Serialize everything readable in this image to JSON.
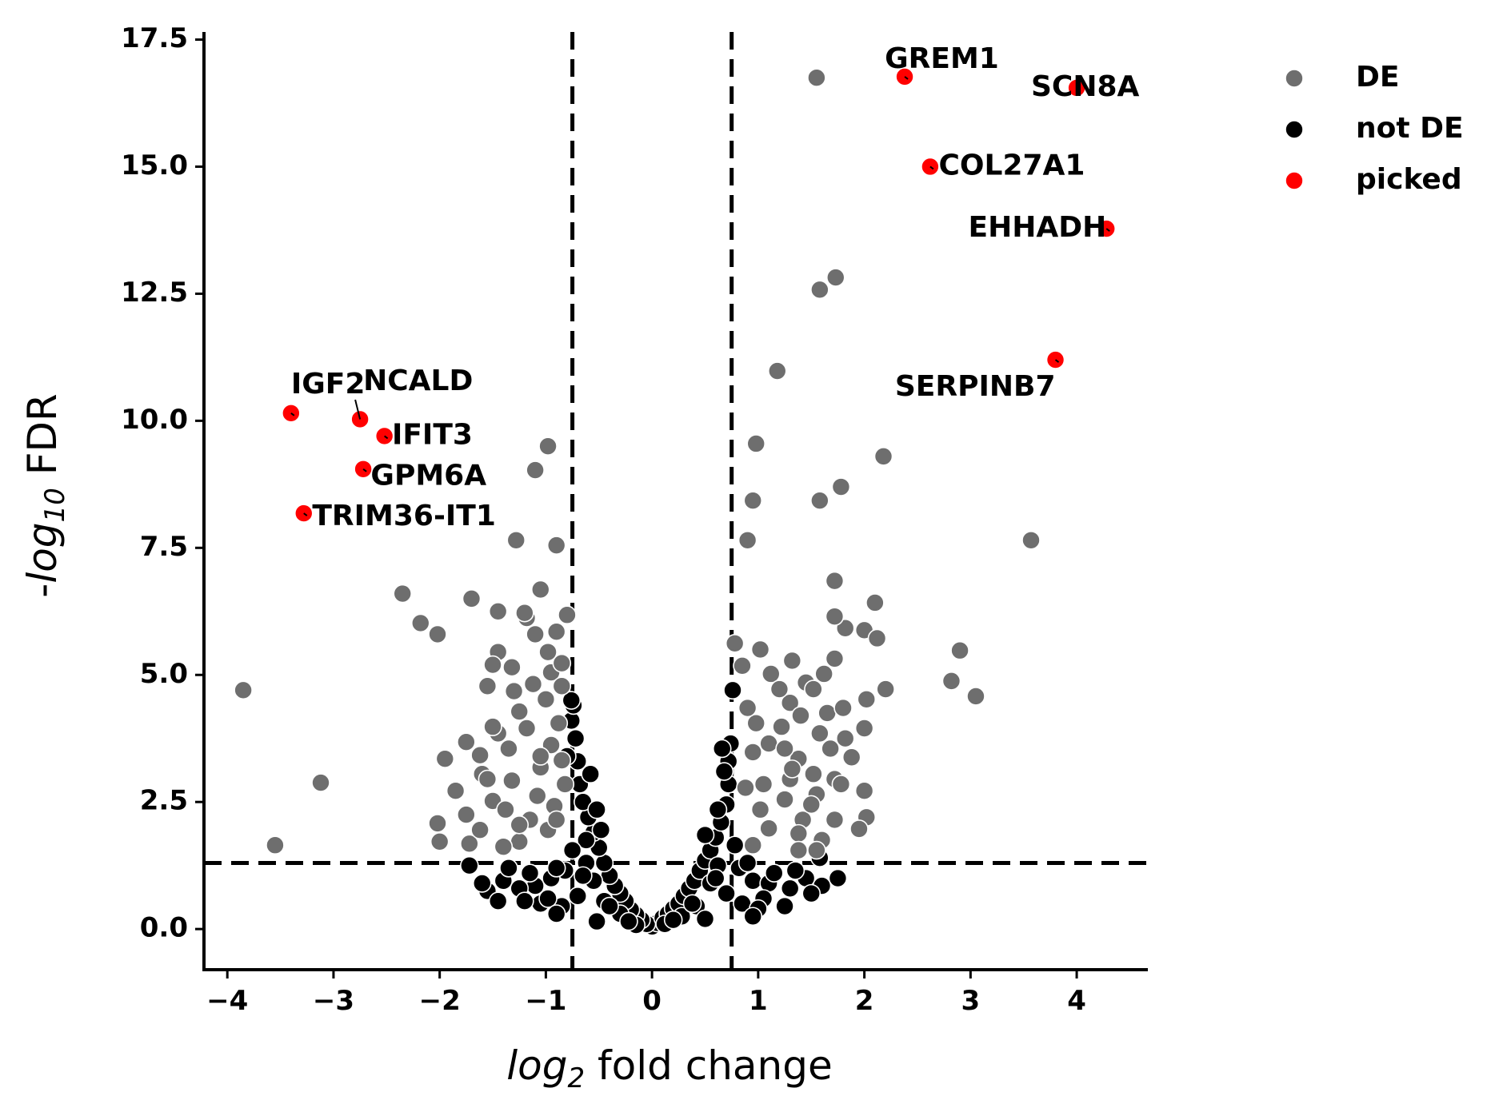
{
  "chart_data": {
    "type": "scatter",
    "xlabel_var": "log",
    "xlabel_sub": "2",
    "xlabel_rest": " fold change",
    "ylabel_prefix": "-",
    "ylabel_var": "log",
    "ylabel_sub": "10",
    "ylabel_rest": " FDR",
    "xlim": [
      -4.22,
      4.67
    ],
    "ylim": [
      -0.8,
      17.65
    ],
    "x_ticks": [
      -4,
      -3,
      -2,
      -1,
      0,
      1,
      2,
      3,
      4
    ],
    "x_tick_labels": [
      "−4",
      "−3",
      "−2",
      "−1",
      "0",
      "1",
      "2",
      "3",
      "4"
    ],
    "y_ticks": [
      0,
      2.5,
      5,
      7.5,
      10,
      12.5,
      15,
      17.5
    ],
    "y_tick_labels": [
      "0.0",
      "2.5",
      "5.0",
      "7.5",
      "10.0",
      "12.5",
      "15.0",
      "17.5"
    ],
    "thresholds": {
      "fc_low": -0.75,
      "fc_high": 0.75,
      "fdr": 1.3
    },
    "legend": [
      {
        "label": "DE",
        "color": "#6e6e6e"
      },
      {
        "label": "not DE",
        "color": "#000000"
      },
      {
        "label": "picked",
        "color": "#ff0000"
      }
    ],
    "legend_position": "outside-top-right",
    "grid": false,
    "series": [
      {
        "name": "DE",
        "color": "#6e6e6e",
        "points": [
          [
            1.55,
            16.75
          ],
          [
            1.73,
            12.82
          ],
          [
            1.58,
            12.58
          ],
          [
            1.18,
            10.98
          ],
          [
            0.98,
            9.55
          ],
          [
            2.18,
            9.3
          ],
          [
            1.78,
            8.7
          ],
          [
            0.95,
            8.43
          ],
          [
            1.58,
            8.43
          ],
          [
            0.9,
            7.65
          ],
          [
            3.57,
            7.65
          ],
          [
            -0.98,
            9.5
          ],
          [
            -1.1,
            9.03
          ],
          [
            -1.28,
            7.65
          ],
          [
            -0.9,
            7.55
          ],
          [
            -3.85,
            4.7
          ],
          [
            -3.12,
            2.88
          ],
          [
            -3.55,
            1.65
          ],
          [
            -2.35,
            6.6
          ],
          [
            -2.18,
            6.02
          ],
          [
            -2.02,
            5.8
          ],
          [
            -1.7,
            6.5
          ],
          [
            -1.45,
            6.25
          ],
          [
            -1.05,
            6.68
          ],
          [
            -0.8,
            6.18
          ],
          [
            -1.18,
            6.12
          ],
          [
            -1.1,
            5.8
          ],
          [
            -0.98,
            5.45
          ],
          [
            -1.45,
            5.45
          ],
          [
            -0.95,
            5.05
          ],
          [
            -1.55,
            4.78
          ],
          [
            -0.85,
            5.23
          ],
          [
            -1.3,
            4.68
          ],
          [
            -1.0,
            4.52
          ],
          [
            -1.25,
            4.28
          ],
          [
            -1.45,
            3.85
          ],
          [
            -1.75,
            3.68
          ],
          [
            -1.95,
            3.35
          ],
          [
            -1.6,
            3.05
          ],
          [
            -1.85,
            2.72
          ],
          [
            -1.5,
            2.52
          ],
          [
            -1.75,
            2.25
          ],
          [
            -2.02,
            2.08
          ],
          [
            -2.0,
            1.72
          ],
          [
            -1.72,
            1.68
          ],
          [
            -1.25,
            1.72
          ],
          [
            -1.15,
            2.15
          ],
          [
            -1.32,
            2.92
          ],
          [
            -1.05,
            3.18
          ],
          [
            -0.95,
            3.62
          ],
          [
            -1.18,
            3.95
          ],
          [
            -0.88,
            4.05
          ],
          [
            -1.35,
            3.55
          ],
          [
            -1.62,
            3.42
          ],
          [
            -1.5,
            3.98
          ],
          [
            -0.82,
            2.85
          ],
          [
            -1.38,
            2.35
          ],
          [
            -1.08,
            2.62
          ],
          [
            -0.92,
            2.42
          ],
          [
            -1.25,
            2.05
          ],
          [
            -0.98,
            1.95
          ],
          [
            -1.62,
            1.95
          ],
          [
            -1.4,
            1.62
          ],
          [
            -0.85,
            3.32
          ],
          [
            -1.12,
            4.82
          ],
          [
            -1.32,
            5.15
          ],
          [
            -1.5,
            5.2
          ],
          [
            -0.9,
            5.85
          ],
          [
            -1.2,
            6.22
          ],
          [
            -0.85,
            4.78
          ],
          [
            -1.05,
            3.4
          ],
          [
            -1.55,
            2.95
          ],
          [
            -0.9,
            2.15
          ],
          [
            0.78,
            5.62
          ],
          [
            1.02,
            5.5
          ],
          [
            0.85,
            5.18
          ],
          [
            1.12,
            5.02
          ],
          [
            1.32,
            5.28
          ],
          [
            1.45,
            4.85
          ],
          [
            1.62,
            5.02
          ],
          [
            1.72,
            5.32
          ],
          [
            1.82,
            5.92
          ],
          [
            1.72,
            6.15
          ],
          [
            1.72,
            6.85
          ],
          [
            2.1,
            6.42
          ],
          [
            2.0,
            5.88
          ],
          [
            2.12,
            5.72
          ],
          [
            1.52,
            4.72
          ],
          [
            1.65,
            4.25
          ],
          [
            1.8,
            4.35
          ],
          [
            1.3,
            4.45
          ],
          [
            0.98,
            4.05
          ],
          [
            1.22,
            3.98
          ],
          [
            1.58,
            3.85
          ],
          [
            1.82,
            3.75
          ],
          [
            1.88,
            3.38
          ],
          [
            2.0,
            3.95
          ],
          [
            2.02,
            4.52
          ],
          [
            2.9,
            5.48
          ],
          [
            2.82,
            4.88
          ],
          [
            3.05,
            4.58
          ],
          [
            1.1,
            3.65
          ],
          [
            1.38,
            3.35
          ],
          [
            1.52,
            3.05
          ],
          [
            1.72,
            2.95
          ],
          [
            1.78,
            2.85
          ],
          [
            2.0,
            2.72
          ],
          [
            2.02,
            2.2
          ],
          [
            1.72,
            2.15
          ],
          [
            1.95,
            1.97
          ],
          [
            0.88,
            2.78
          ],
          [
            1.02,
            2.35
          ],
          [
            1.25,
            2.55
          ],
          [
            1.42,
            2.15
          ],
          [
            1.6,
            1.75
          ],
          [
            1.55,
            1.55
          ],
          [
            1.38,
            1.88
          ],
          [
            0.95,
            3.48
          ],
          [
            1.4,
            4.2
          ],
          [
            1.2,
            4.72
          ],
          [
            0.9,
            4.35
          ],
          [
            1.3,
            2.95
          ],
          [
            1.1,
            1.98
          ],
          [
            1.55,
            2.65
          ],
          [
            1.68,
            3.55
          ],
          [
            1.25,
            3.55
          ],
          [
            1.5,
            2.45
          ],
          [
            0.95,
            1.65
          ],
          [
            1.05,
            2.85
          ],
          [
            1.38,
            1.55
          ],
          [
            2.2,
            4.72
          ],
          [
            1.32,
            3.15
          ]
        ]
      },
      {
        "name": "not DE",
        "color": "#000000",
        "points": [
          [
            0.0,
            0.05
          ],
          [
            0.05,
            0.12
          ],
          [
            -0.05,
            0.1
          ],
          [
            0.1,
            0.22
          ],
          [
            -0.1,
            0.18
          ],
          [
            0.15,
            0.3
          ],
          [
            -0.15,
            0.28
          ],
          [
            0.2,
            0.4
          ],
          [
            -0.2,
            0.38
          ],
          [
            0.25,
            0.5
          ],
          [
            -0.25,
            0.55
          ],
          [
            0.3,
            0.65
          ],
          [
            -0.3,
            0.7
          ],
          [
            0.35,
            0.8
          ],
          [
            -0.35,
            0.85
          ],
          [
            0.4,
            0.95
          ],
          [
            -0.4,
            1.05
          ],
          [
            0.45,
            1.15
          ],
          [
            -0.45,
            1.3
          ],
          [
            0.5,
            1.35
          ],
          [
            -0.5,
            1.6
          ],
          [
            0.55,
            1.55
          ],
          [
            -0.55,
            1.9
          ],
          [
            0.6,
            1.8
          ],
          [
            -0.6,
            2.2
          ],
          [
            0.65,
            2.1
          ],
          [
            -0.65,
            2.5
          ],
          [
            0.7,
            2.45
          ],
          [
            -0.68,
            2.85
          ],
          [
            0.72,
            2.85
          ],
          [
            -0.7,
            3.3
          ],
          [
            0.72,
            3.3
          ],
          [
            -0.72,
            3.75
          ],
          [
            0.74,
            3.65
          ],
          [
            -0.76,
            4.1
          ],
          [
            0.76,
            4.7
          ],
          [
            -0.74,
            4.4
          ],
          [
            -0.8,
            3.4
          ],
          [
            -0.76,
            4.5
          ],
          [
            0.68,
            3.1
          ],
          [
            0.62,
            2.35
          ],
          [
            -0.62,
            1.75
          ],
          [
            -0.82,
            1.15
          ],
          [
            0.82,
            1.2
          ],
          [
            -0.95,
            1.0
          ],
          [
            0.95,
            0.95
          ],
          [
            -1.1,
            0.85
          ],
          [
            1.1,
            0.9
          ],
          [
            -1.25,
            0.8
          ],
          [
            1.3,
            0.8
          ],
          [
            -1.4,
            0.95
          ],
          [
            1.45,
            1.0
          ],
          [
            -1.55,
            0.75
          ],
          [
            1.6,
            0.85
          ],
          [
            -1.72,
            1.25
          ],
          [
            1.75,
            1.0
          ],
          [
            -1.6,
            0.9
          ],
          [
            1.58,
            1.4
          ],
          [
            -1.35,
            1.2
          ],
          [
            1.35,
            1.15
          ],
          [
            -1.15,
            1.1
          ],
          [
            1.15,
            1.1
          ],
          [
            -0.9,
            1.2
          ],
          [
            0.9,
            1.3
          ],
          [
            -0.55,
            0.95
          ],
          [
            0.55,
            0.9
          ],
          [
            -0.45,
            0.55
          ],
          [
            0.42,
            0.45
          ],
          [
            -0.3,
            0.3
          ],
          [
            0.28,
            0.25
          ],
          [
            -0.62,
            1.3
          ],
          [
            0.62,
            1.25
          ],
          [
            -0.52,
            2.35
          ],
          [
            -0.48,
            1.95
          ],
          [
            0.5,
            1.85
          ],
          [
            -0.85,
            0.45
          ],
          [
            0.85,
            0.5
          ],
          [
            -1.05,
            0.5
          ],
          [
            1.05,
            0.6
          ],
          [
            -1.2,
            0.55
          ],
          [
            1.25,
            0.45
          ],
          [
            -0.7,
            0.65
          ],
          [
            0.7,
            0.7
          ],
          [
            -0.75,
            1.55
          ],
          [
            0.78,
            1.65
          ],
          [
            -0.98,
            0.6
          ],
          [
            1.0,
            0.4
          ],
          [
            -0.15,
            0.08
          ],
          [
            0.12,
            0.1
          ],
          [
            -0.22,
            0.15
          ],
          [
            0.2,
            0.18
          ],
          [
            -0.58,
            3.05
          ],
          [
            0.66,
            3.55
          ],
          [
            -0.65,
            1.05
          ],
          [
            0.6,
            1.0
          ],
          [
            -0.4,
            0.45
          ],
          [
            0.38,
            0.5
          ],
          [
            -1.45,
            0.55
          ],
          [
            1.5,
            0.7
          ],
          [
            -0.9,
            0.3
          ],
          [
            0.95,
            0.25
          ],
          [
            -0.52,
            0.15
          ],
          [
            0.5,
            0.2
          ]
        ]
      },
      {
        "name": "picked",
        "color": "#ff0000",
        "points": [
          [
            2.38,
            16.77
          ],
          [
            4.0,
            16.55
          ],
          [
            2.62,
            15.0
          ],
          [
            4.28,
            13.78
          ],
          [
            3.8,
            11.2
          ],
          [
            -3.4,
            10.15
          ],
          [
            -2.75,
            10.03
          ],
          [
            -2.52,
            9.7
          ],
          [
            -2.72,
            9.05
          ],
          [
            -3.28,
            8.18
          ]
        ]
      }
    ],
    "annotations": [
      {
        "text": "GREM1",
        "x": 2.38,
        "y": 16.77,
        "tx": 2.73,
        "ty": 17.1,
        "anchor": "middle"
      },
      {
        "text": "SCN8A",
        "x": 4.0,
        "y": 16.55,
        "tx": 4.08,
        "ty": 16.55,
        "anchor": "middle"
      },
      {
        "text": "COL27A1",
        "x": 2.62,
        "y": 15.0,
        "tx": 2.7,
        "ty": 15.0,
        "anchor": "start"
      },
      {
        "text": "EHHADH",
        "x": 4.28,
        "y": 13.78,
        "tx": 4.28,
        "ty": 13.78,
        "anchor": "end"
      },
      {
        "text": "SERPINB7",
        "x": 3.8,
        "y": 11.2,
        "tx": 3.8,
        "ty": 10.65,
        "anchor": "end"
      },
      {
        "text": "IGF2",
        "x": -3.4,
        "y": 10.15,
        "tx": -3.4,
        "ty": 10.7,
        "anchor": "start"
      },
      {
        "text": "NCALD",
        "x": -2.75,
        "y": 10.03,
        "tx": -2.72,
        "ty": 10.76,
        "anchor": "start"
      },
      {
        "text": "IFIT3",
        "x": -2.52,
        "y": 9.7,
        "tx": -2.45,
        "ty": 9.7,
        "anchor": "start"
      },
      {
        "text": "GPM6A",
        "x": -2.72,
        "y": 9.05,
        "tx": -2.65,
        "ty": 8.9,
        "anchor": "start"
      },
      {
        "text": "TRIM36-IT1",
        "x": -3.28,
        "y": 8.18,
        "tx": -3.2,
        "ty": 8.1,
        "anchor": "start"
      }
    ]
  }
}
